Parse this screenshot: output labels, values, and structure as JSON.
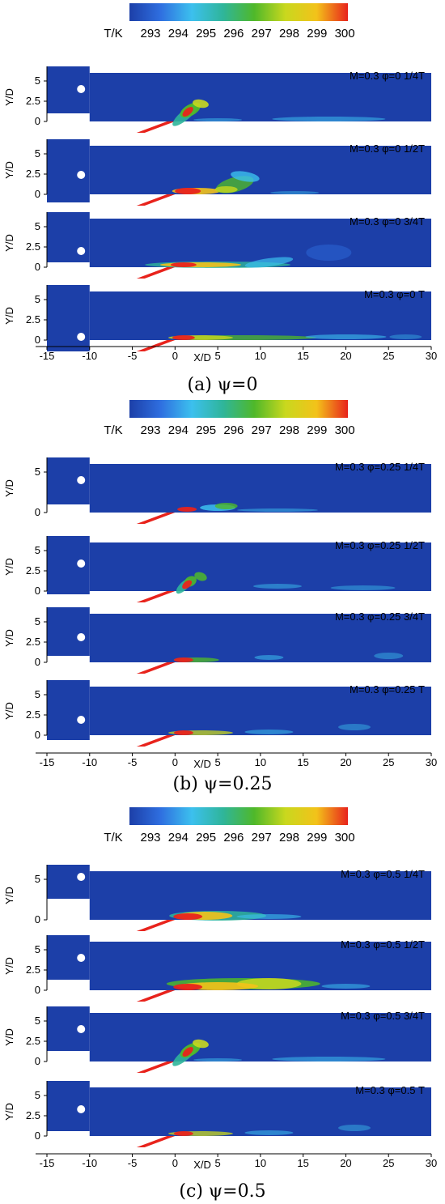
{
  "chart_data": {
    "type": "heatmap",
    "colorbar": {
      "label": "T/K",
      "ticks": [
        "293",
        "294",
        "295",
        "296",
        "297",
        "298",
        "299",
        "300"
      ],
      "range": [
        293,
        300
      ],
      "colors": [
        "#1c3fa8",
        "#2f6fe0",
        "#3cc0ee",
        "#2fb59a",
        "#4fb82a",
        "#c9d81e",
        "#f3c21a",
        "#e8231c"
      ]
    },
    "x_axis": {
      "label": "X/D",
      "range": [
        -15,
        30
      ],
      "ticks": [
        "-15",
        "-10",
        "-5",
        "0",
        "5",
        "10",
        "15",
        "20",
        "25",
        "30"
      ]
    },
    "y_axis": {
      "label": "Y/D",
      "ticks": [
        "0",
        "2.5",
        "5"
      ]
    },
    "groups": [
      {
        "caption": "(a) ψ=0",
        "colorbar_visible": true,
        "panels": [
          {
            "label": "M=0.3  φ=0  1/4T",
            "y_ticks": [
              "0",
              "2.5",
              "5"
            ],
            "blob": "jet_vortex_1_4"
          },
          {
            "label": "M=0.3  φ=0  1/2T",
            "y_ticks": [
              "0",
              "2.5",
              "5"
            ],
            "blob": "jet_vortex_1_2"
          },
          {
            "label": "M=0.3  φ=0  3/4T",
            "y_ticks": [
              "0",
              "2.5",
              "5"
            ],
            "blob": "jet_long_3_4"
          },
          {
            "label": "M=0.3  φ=0    T",
            "y_ticks": [
              "0",
              "2.5",
              "5"
            ],
            "blob": "jet_long_T"
          }
        ]
      },
      {
        "caption": "(b) ψ=0.25",
        "colorbar_visible": true,
        "panels": [
          {
            "label": "M=0.3  φ=0.25  1/4T",
            "y_ticks": [
              "0",
              "5"
            ],
            "blob": "jet_short_a"
          },
          {
            "label": "M=0.3  φ=0.25  1/2T",
            "y_ticks": [
              "0",
              "2.5",
              "5"
            ],
            "blob": "jet_vortex_small"
          },
          {
            "label": "M=0.3  φ=0.25  3/4T",
            "y_ticks": [
              "0",
              "2.5",
              "5"
            ],
            "blob": "jet_short_b"
          },
          {
            "label": "M=0.3  φ=0.25    T",
            "y_ticks": [
              "0",
              "2.5",
              "5"
            ],
            "blob": "jet_short_c"
          }
        ]
      },
      {
        "caption": "(c) ψ=0.5",
        "colorbar_visible": true,
        "panels": [
          {
            "label": "M=0.3  φ=0.5  1/4T",
            "y_ticks": [
              "0",
              "5"
            ],
            "blob": "jet_hot_long"
          },
          {
            "label": "M=0.3  φ=0.5  1/2T",
            "y_ticks": [
              "0",
              "2.5",
              "5"
            ],
            "blob": "jet_hot_wide"
          },
          {
            "label": "M=0.3  φ=0.5  3/4T",
            "y_ticks": [
              "0",
              "2.5",
              "5"
            ],
            "blob": "jet_vortex_1_4"
          },
          {
            "label": "M=0.3  φ=0.5    T",
            "y_ticks": [
              "0",
              "2.5",
              "5"
            ],
            "blob": "jet_short_c"
          }
        ]
      }
    ]
  }
}
